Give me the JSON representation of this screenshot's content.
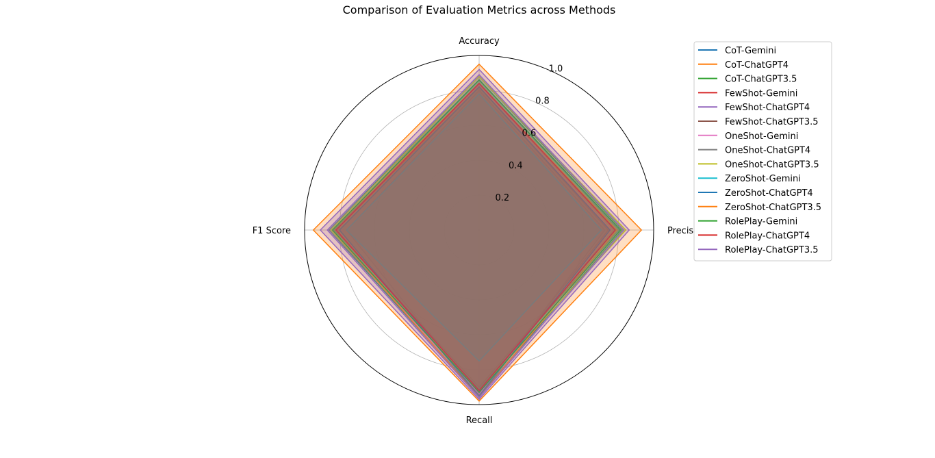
{
  "chart_data": {
    "type": "radar",
    "title": "Comparison of Evaluation Metrics across Methods",
    "axes": [
      "Accuracy",
      "Precision",
      "Recall",
      "F1 Score"
    ],
    "rlim": [
      0,
      1.0
    ],
    "r_ticks": [
      "0.2",
      "0.4",
      "0.6",
      "0.8",
      "1.0"
    ],
    "r_tick_values": [
      0.2,
      0.4,
      0.6,
      0.8,
      1.0
    ],
    "grid": true,
    "fill_alpha": 0.25,
    "legend_position": "upper-right-outside",
    "series": [
      {
        "name": "CoT-Gemini",
        "color": "#1f77b4",
        "values": [
          0.8,
          0.72,
          0.95,
          0.76
        ]
      },
      {
        "name": "CoT-ChatGPT4",
        "color": "#ff7f0e",
        "values": [
          0.95,
          0.93,
          0.98,
          0.95
        ]
      },
      {
        "name": "CoT-ChatGPT3.5",
        "color": "#2ca02c",
        "values": [
          0.88,
          0.82,
          0.95,
          0.86
        ]
      },
      {
        "name": "FewShot-Gemini",
        "color": "#d62728",
        "values": [
          0.82,
          0.74,
          0.93,
          0.82
        ]
      },
      {
        "name": "FewShot-ChatGPT4",
        "color": "#9467bd",
        "values": [
          0.92,
          0.86,
          0.97,
          0.91
        ]
      },
      {
        "name": "FewShot-ChatGPT3.5",
        "color": "#8c564b",
        "values": [
          0.84,
          0.78,
          0.9,
          0.83
        ]
      },
      {
        "name": "OneShot-Gemini",
        "color": "#e377c2",
        "values": [
          0.83,
          0.76,
          0.94,
          0.84
        ]
      },
      {
        "name": "OneShot-ChatGPT4",
        "color": "#7f7f7f",
        "values": [
          0.86,
          0.8,
          0.91,
          0.86
        ]
      },
      {
        "name": "OneShot-ChatGPT3.5",
        "color": "#bcbd22",
        "values": [
          0.88,
          0.84,
          0.92,
          0.85
        ]
      },
      {
        "name": "ZeroShot-Gemini",
        "color": "#17becf",
        "values": [
          0.78,
          0.7,
          0.75,
          0.76
        ]
      },
      {
        "name": "ZeroShot-ChatGPT4",
        "color": "#1f77b4",
        "values": [
          0.82,
          0.75,
          0.95,
          0.8
        ]
      },
      {
        "name": "ZeroShot-ChatGPT3.5",
        "color": "#ff7f0e",
        "values": [
          0.84,
          0.79,
          0.96,
          0.84
        ]
      },
      {
        "name": "RolePlay-Gemini",
        "color": "#2ca02c",
        "values": [
          0.86,
          0.81,
          0.93,
          0.84
        ]
      },
      {
        "name": "RolePlay-ChatGPT4",
        "color": "#d62728",
        "values": [
          0.84,
          0.78,
          0.92,
          0.82
        ]
      },
      {
        "name": "RolePlay-ChatGPT3.5",
        "color": "#9467bd",
        "values": [
          0.89,
          0.83,
          0.96,
          0.87
        ]
      }
    ]
  }
}
